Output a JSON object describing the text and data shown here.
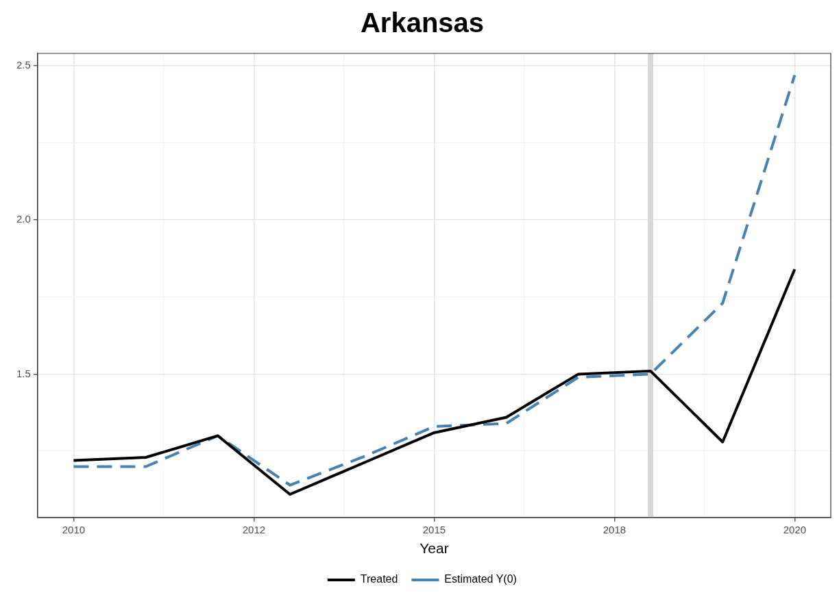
{
  "chart_data": {
    "type": "line",
    "title": "Arkansas",
    "xlabel": "Year",
    "x": [
      2010,
      2011,
      2012,
      2013,
      2014,
      2015,
      2016,
      2017,
      2018,
      2019,
      2020
    ],
    "series": [
      {
        "name": "Treated",
        "color": "#000000",
        "line_style": "solid",
        "values": [
          1.22,
          1.23,
          1.3,
          1.11,
          1.21,
          1.31,
          1.36,
          1.5,
          1.51,
          1.28,
          1.84
        ]
      },
      {
        "name": "Estimated Y(0)",
        "color": "#4682b4",
        "line_style": "dashed",
        "values": [
          1.2,
          1.2,
          1.3,
          1.14,
          1.23,
          1.33,
          1.34,
          1.49,
          1.5,
          1.73,
          2.47
        ]
      }
    ],
    "xlim": [
      2009.5,
      2020.5
    ],
    "xticks": [
      2010,
      {
        "value": 2011.25,
        "label": null
      },
      {
        "value": 2012.5,
        "label": "2012"
      },
      {
        "value": 2013.75,
        "label": null
      },
      2015,
      {
        "value": 2016.25,
        "label": null
      },
      {
        "value": 2017.5,
        "label": "2018"
      },
      {
        "value": 2018.75,
        "label": null
      },
      2020
    ],
    "ylim": [
      1.035,
      2.54
    ],
    "yticks": [
      {
        "value": 1.25,
        "label": null
      },
      {
        "value": 1.5,
        "label": "1.5"
      },
      {
        "value": 1.75,
        "label": null
      },
      {
        "value": 2,
        "label": "2.0"
      },
      {
        "value": 2.25,
        "label": null
      },
      {
        "value": 2.5,
        "label": "2.5"
      }
    ],
    "grid": true,
    "legend": "bottom",
    "ref_lines": [
      {
        "axis": "x",
        "value": 2018,
        "color": "#d9d9d9"
      }
    ]
  }
}
